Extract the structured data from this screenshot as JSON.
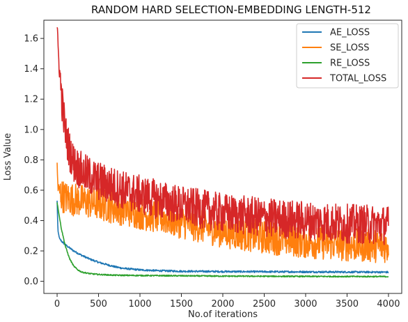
{
  "chart_data": {
    "type": "line",
    "title": "RANDOM HARD SELECTION-EMBEDDING LENGTH-512",
    "xlabel": "No.of iterations",
    "ylabel": "Loss Value",
    "xlim": [
      -160,
      4160
    ],
    "ylim": [
      -0.08,
      1.72
    ],
    "xticks": [
      0,
      500,
      1000,
      1500,
      2000,
      2500,
      3000,
      3500,
      4000
    ],
    "yticks": [
      0.0,
      0.2,
      0.4,
      0.6,
      0.8,
      1.0,
      1.2,
      1.4,
      1.6
    ],
    "grid": false,
    "legend_position": "top-right",
    "series": [
      {
        "name": "AE_LOSS",
        "color": "#1f77b4",
        "x": [
          0,
          10,
          30,
          60,
          100,
          150,
          200,
          300,
          400,
          500,
          600,
          700,
          800,
          1000,
          1200,
          1500,
          2000,
          2500,
          3000,
          3500,
          4000
        ],
        "y": [
          0.53,
          0.33,
          0.28,
          0.26,
          0.24,
          0.22,
          0.2,
          0.17,
          0.145,
          0.125,
          0.11,
          0.095,
          0.085,
          0.075,
          0.07,
          0.066,
          0.064,
          0.063,
          0.062,
          0.061,
          0.06
        ],
        "noise": 0.006
      },
      {
        "name": "SE_LOSS",
        "color": "#ff7f0e",
        "x": [
          0,
          10,
          20,
          50,
          100,
          200,
          500,
          1000,
          1500,
          2000,
          2500,
          3000,
          3500,
          4000
        ],
        "y": [
          0.75,
          0.62,
          0.6,
          0.57,
          0.55,
          0.54,
          0.51,
          0.45,
          0.39,
          0.33,
          0.29,
          0.26,
          0.24,
          0.23
        ],
        "noise": 0.11
      },
      {
        "name": "RE_LOSS",
        "color": "#2ca02c",
        "x": [
          0,
          20,
          50,
          100,
          150,
          200,
          250,
          300,
          400,
          500,
          700,
          1000,
          1500,
          2000,
          3000,
          4000
        ],
        "y": [
          0.52,
          0.45,
          0.35,
          0.23,
          0.15,
          0.1,
          0.075,
          0.06,
          0.05,
          0.045,
          0.04,
          0.038,
          0.036,
          0.034,
          0.032,
          0.031
        ],
        "noise": 0.004
      },
      {
        "name": "TOTAL_LOSS",
        "color": "#d62728",
        "x": [
          0,
          10,
          30,
          60,
          100,
          150,
          200,
          300,
          500,
          800,
          1000,
          1500,
          2000,
          2500,
          3000,
          3500,
          4000
        ],
        "y": [
          1.65,
          1.55,
          1.38,
          1.18,
          0.98,
          0.86,
          0.78,
          0.72,
          0.66,
          0.6,
          0.57,
          0.5,
          0.45,
          0.42,
          0.4,
          0.38,
          0.37
        ],
        "noise": 0.13
      }
    ]
  }
}
